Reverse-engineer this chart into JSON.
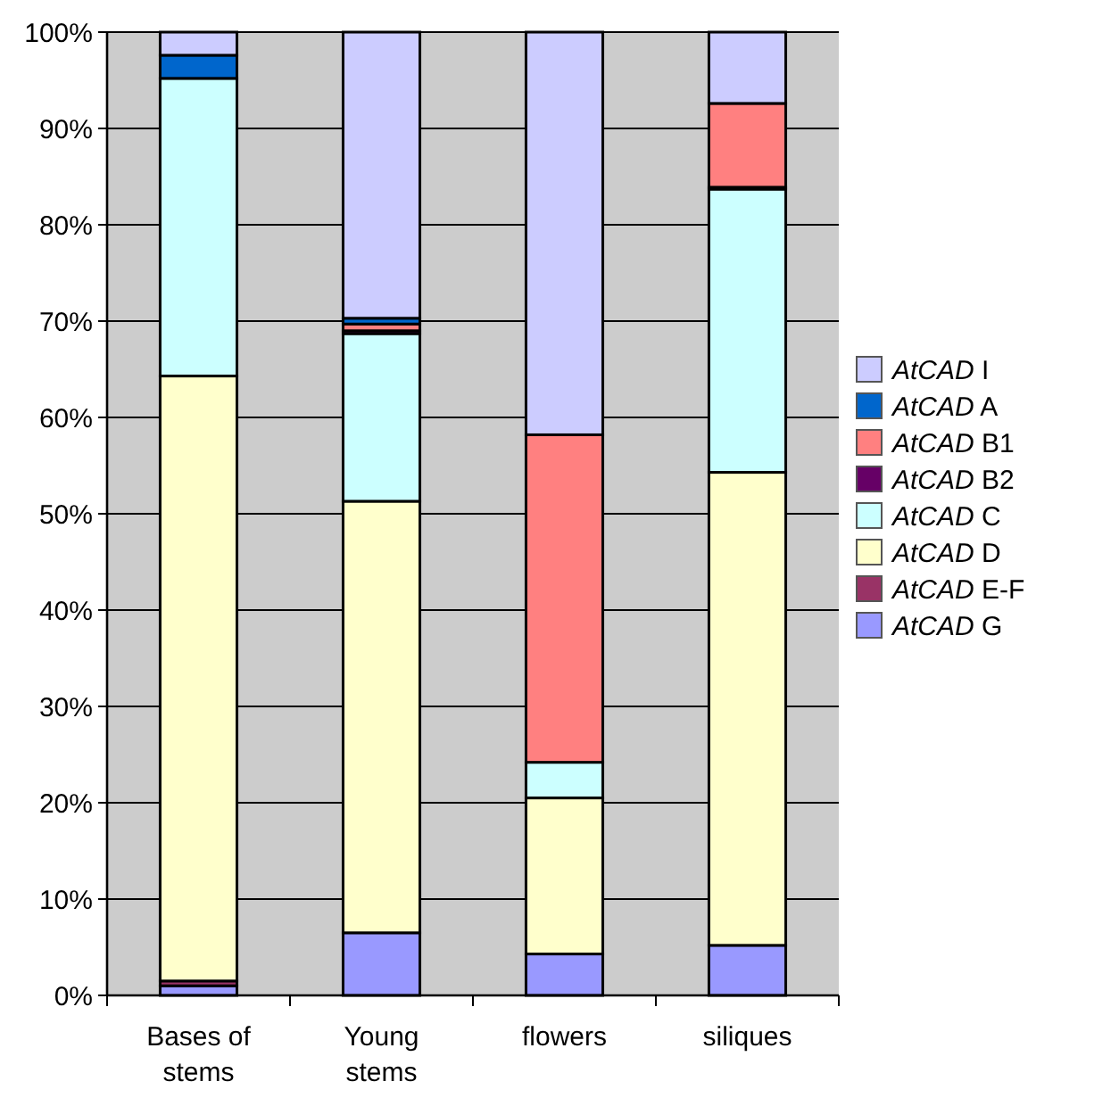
{
  "chart_data": {
    "type": "bar",
    "stacked": true,
    "categories": [
      "Bases of stems",
      "Young stems",
      "flowers",
      "siliques"
    ],
    "series": [
      {
        "name": "AtCAD G",
        "color": "#9999ff",
        "values": [
          1,
          6.5,
          4.3,
          5.2
        ]
      },
      {
        "name": "AtCAD E-F",
        "color": "#993366",
        "values": [
          0.5,
          null,
          null,
          null
        ]
      },
      {
        "name": "AtCAD D",
        "color": "#ffffcc",
        "values": [
          62.8,
          44.8,
          16.2,
          49.1
        ]
      },
      {
        "name": "AtCAD C",
        "color": "#ccffff",
        "values": [
          30.9,
          17.4,
          3.7,
          29.4
        ]
      },
      {
        "name": "AtCAD B2",
        "color": "#660066",
        "values": [
          null,
          0.3,
          null,
          0.2
        ]
      },
      {
        "name": "AtCAD B1",
        "color": "#ff8080",
        "values": [
          0,
          0.7,
          34,
          8.7
        ]
      },
      {
        "name": "AtCAD A",
        "color": "#0066cc",
        "values": [
          2.4,
          0.6,
          null,
          null
        ]
      },
      {
        "name": "AtCAD I",
        "color": "#ccccff",
        "values": [
          2.4,
          29.7,
          41.8,
          7.4
        ]
      }
    ],
    "ylim": [
      0,
      100
    ],
    "yticks": [
      {
        "value": 0,
        "label": "0%"
      },
      {
        "value": 10,
        "label": "10%"
      },
      {
        "value": 20,
        "label": "20%"
      },
      {
        "value": 30,
        "label": "30%"
      },
      {
        "value": 40,
        "label": "40%"
      },
      {
        "value": 50,
        "label": "50%"
      },
      {
        "value": 60,
        "label": "60%"
      },
      {
        "value": 70,
        "label": "70%"
      },
      {
        "value": 80,
        "label": "80%"
      },
      {
        "value": 90,
        "label": "90%"
      },
      {
        "value": 100,
        "label": "100%"
      }
    ],
    "grid": "y",
    "legend": "right"
  }
}
